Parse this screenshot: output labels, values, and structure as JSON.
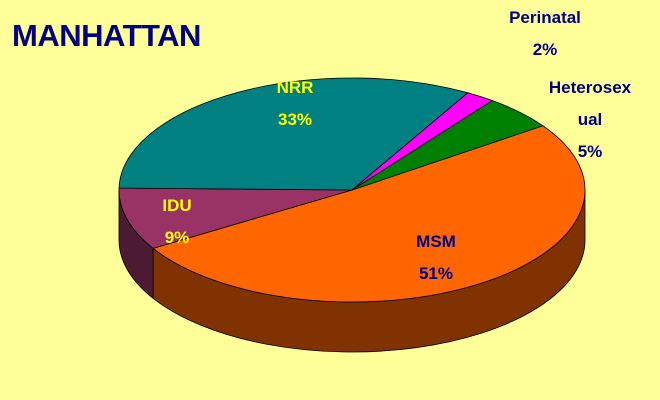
{
  "chart_data": {
    "type": "pie",
    "title": "MANHATTAN",
    "categories": [
      "MSM",
      "IDU",
      "NRR",
      "Perinatal",
      "Heterosexual"
    ],
    "values": [
      51,
      9,
      33,
      2,
      5
    ],
    "value_labels": [
      "51%",
      "9%",
      "33%",
      "2%",
      "5%"
    ],
    "colors": [
      "#ff6600",
      "#993366",
      "#008080",
      "#ff00ff",
      "#008000"
    ],
    "label_colors": [
      "#000080",
      "#ffff00",
      "#ffff00",
      "#000080",
      "#000080"
    ]
  }
}
